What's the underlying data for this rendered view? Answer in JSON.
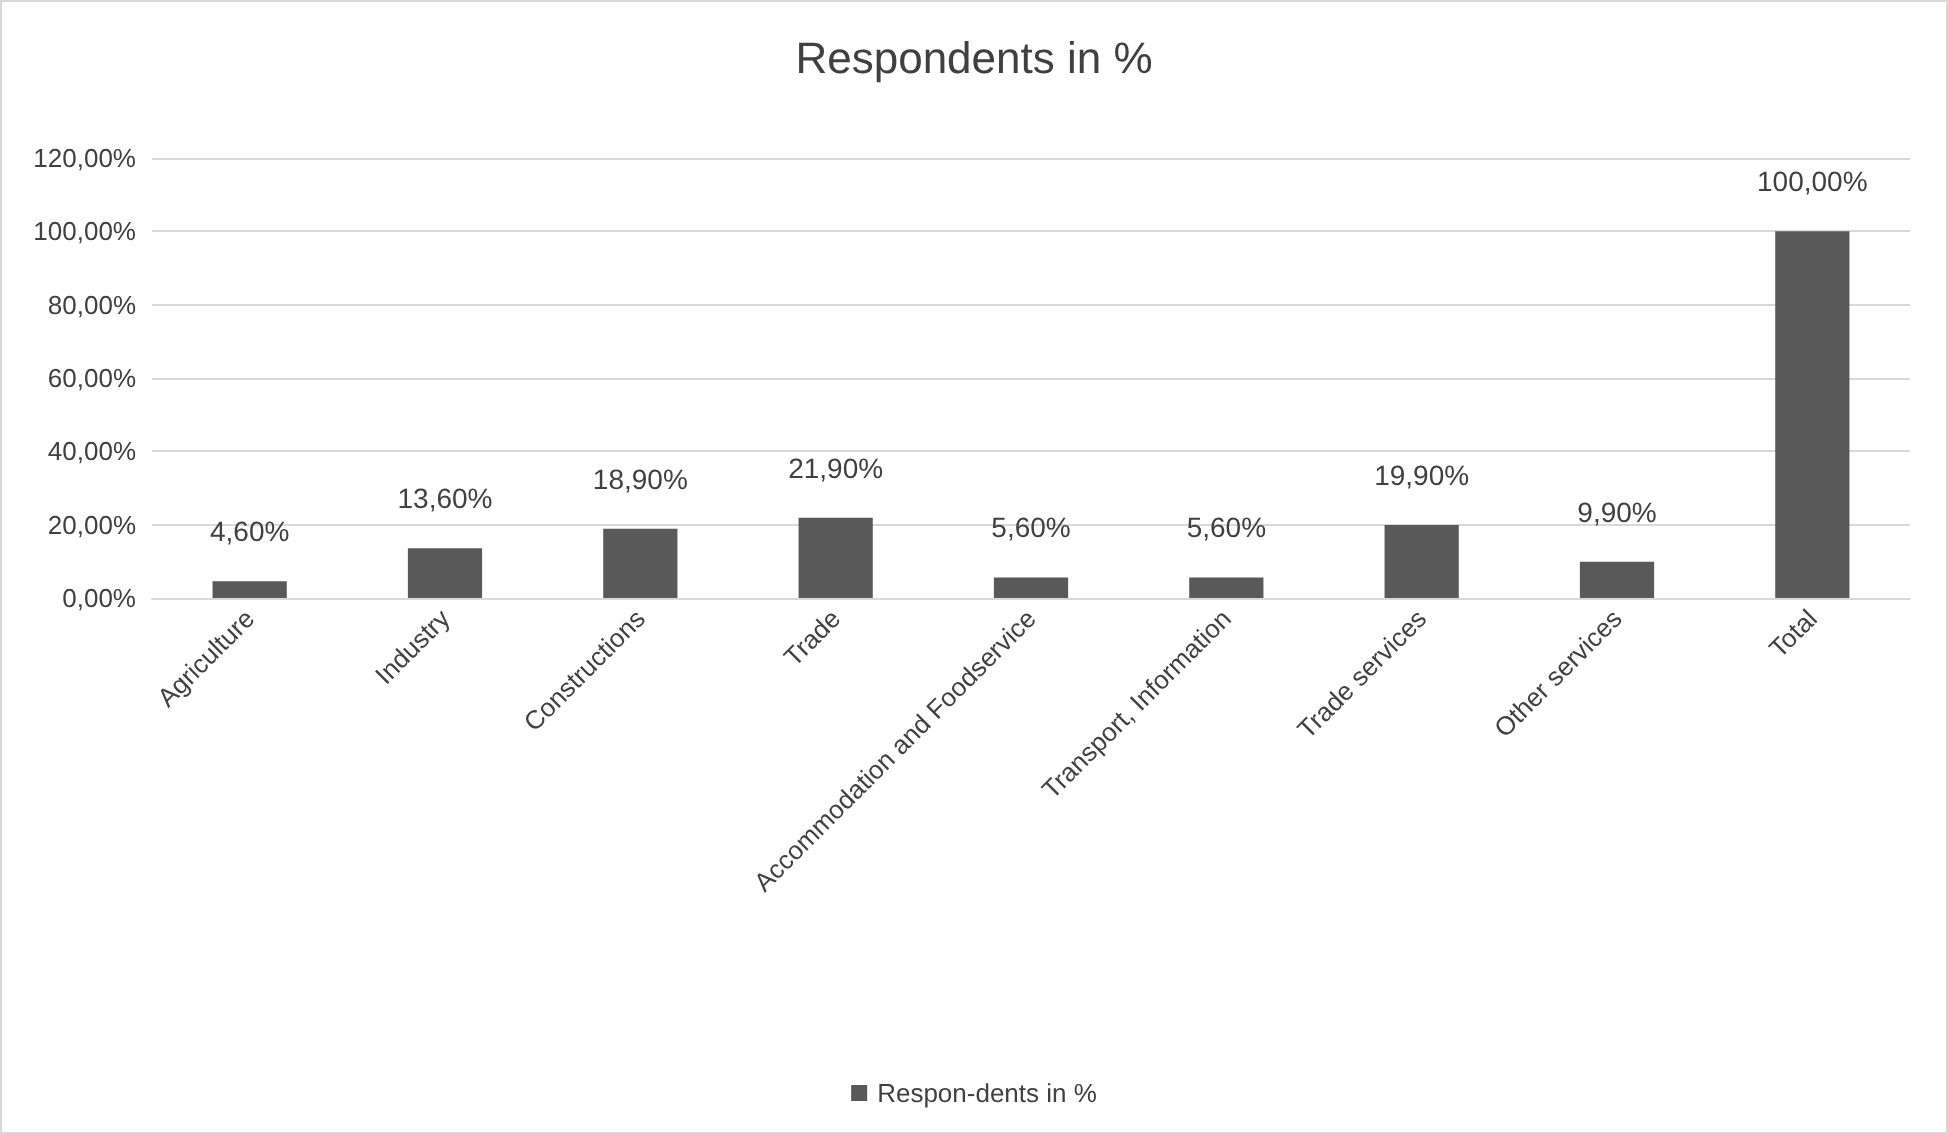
{
  "chart_data": {
    "type": "bar",
    "title": "Respondents in %",
    "categories": [
      "Agriculture",
      "Industry",
      "Constructions",
      "Trade",
      "Accommodation and Foodservice",
      "Transport, Information",
      "Trade services",
      "Other services",
      "Total"
    ],
    "series": [
      {
        "name": "Respon-dents in %",
        "color": "#595959",
        "values": [
          4.6,
          13.6,
          18.9,
          21.9,
          5.6,
          5.6,
          19.9,
          9.9,
          100
        ],
        "value_labels": [
          "4,60%",
          "13,60%",
          "18,90%",
          "21,90%",
          "5,60%",
          "5,60%",
          "19,90%",
          "9,90%",
          "100,00%"
        ]
      }
    ],
    "ylim": [
      0,
      120
    ],
    "yticks": [
      {
        "value": 0,
        "label": "0,00%"
      },
      {
        "value": 20,
        "label": "20,00%"
      },
      {
        "value": 40,
        "label": "40,00%"
      },
      {
        "value": 60,
        "label": "60,00%"
      },
      {
        "value": 80,
        "label": "80,00%"
      },
      {
        "value": 100,
        "label": "100,00%"
      },
      {
        "value": 120,
        "label": "120,00%"
      }
    ],
    "grid": "y",
    "legend": "bottom"
  }
}
